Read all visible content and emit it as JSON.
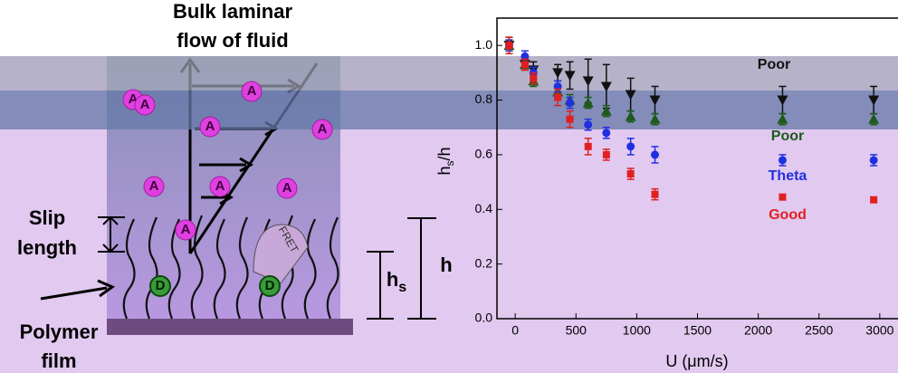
{
  "chart_data": {
    "type": "scatter",
    "xlabel": "U (μm/s)",
    "ylabel": {
      "main": "h",
      "sub": "s",
      "tail": "/h"
    },
    "xlim": [
      -150,
      3150
    ],
    "ylim": [
      0,
      1.1
    ],
    "xticks": [
      0,
      500,
      1000,
      1500,
      2000,
      2500,
      3000
    ],
    "yticks": [
      {
        "value": 0,
        "label": "0.0"
      },
      {
        "value": 0.2,
        "label": "0.2"
      },
      {
        "value": 0.4,
        "label": "0.4"
      },
      {
        "value": 0.6,
        "label": "0.6"
      },
      {
        "value": 0.8,
        "label": "0.8"
      },
      {
        "value": 1.0,
        "label": "1.0"
      }
    ],
    "x": [
      -50,
      80,
      150,
      350,
      450,
      600,
      750,
      950,
      1150,
      2200,
      2950
    ],
    "series": [
      {
        "name": "Poor",
        "color": "#111111",
        "marker": "triangle-down",
        "values": [
          1.0,
          0.93,
          0.91,
          0.9,
          0.89,
          0.87,
          0.85,
          0.82,
          0.8,
          0.8,
          0.8
        ],
        "errors": [
          0.03,
          0.02,
          0.03,
          0.03,
          0.05,
          0.08,
          0.08,
          0.06,
          0.05,
          0.05,
          0.05
        ]
      },
      {
        "name": "Poor",
        "color": "#1e5a1e",
        "marker": "triangle-up",
        "values": [
          1.0,
          0.93,
          0.87,
          0.83,
          0.8,
          0.79,
          0.76,
          0.74,
          0.73,
          0.73,
          0.73
        ],
        "errors": [
          0.02,
          0.02,
          0.02,
          0.02,
          0.02,
          0.02,
          0.02,
          0.02,
          0.02,
          0.02,
          0.02
        ]
      },
      {
        "name": "Theta",
        "color": "#2030e0",
        "marker": "circle",
        "values": [
          1.0,
          0.96,
          0.9,
          0.85,
          0.79,
          0.71,
          0.68,
          0.63,
          0.6,
          0.58,
          0.58
        ],
        "errors": [
          0.02,
          0.02,
          0.02,
          0.02,
          0.02,
          0.02,
          0.02,
          0.03,
          0.03,
          0.02,
          0.02
        ]
      },
      {
        "name": "Good",
        "color": "#e02020",
        "marker": "square",
        "values": [
          1.0,
          0.93,
          0.88,
          0.81,
          0.73,
          0.63,
          0.6,
          0.53,
          0.455,
          0.445,
          0.435
        ],
        "errors": [
          0.03,
          0.02,
          0.02,
          0.03,
          0.03,
          0.03,
          0.02,
          0.02,
          0.02,
          0.01,
          0.01
        ]
      }
    ]
  },
  "diagram": {
    "title": [
      "Bulk laminar",
      "flow of fluid"
    ],
    "slip": [
      "Slip",
      "length"
    ],
    "film": [
      "Polymer",
      "film"
    ],
    "h": "h",
    "hs": {
      "main": "h",
      "sub": "s"
    },
    "fret": "FRET",
    "acceptors": [
      "A",
      "A",
      "A",
      "A",
      "A",
      "A",
      "A",
      "A",
      "A"
    ],
    "donors": [
      "D",
      "D"
    ]
  }
}
